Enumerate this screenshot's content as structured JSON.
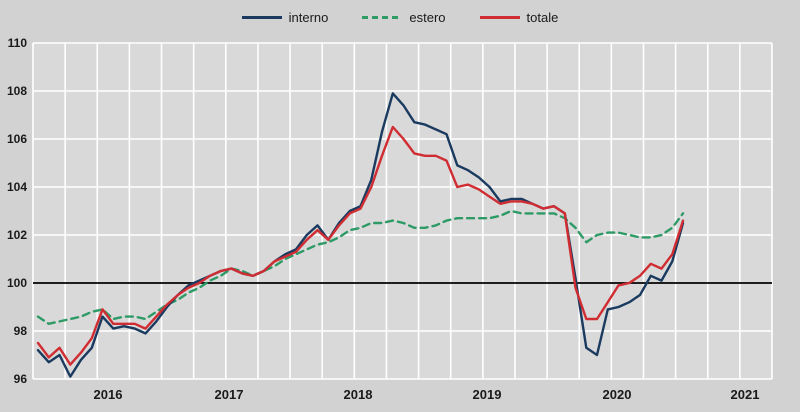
{
  "legend": {
    "items": [
      {
        "label": "interno",
        "color": "#1b3a5f",
        "style": "solid"
      },
      {
        "label": "estero",
        "color": "#2e9b67",
        "style": "dashed"
      },
      {
        "label": "totale",
        "color": "#d02d33",
        "style": "solid"
      }
    ]
  },
  "colors": {
    "background": "#d2d2d2",
    "plot_fill": "#d9d9d9",
    "gridline": "#ffffff",
    "baseline": "#000000",
    "interno": "#1b3a5f",
    "estero": "#2e9b67",
    "totale": "#d02d33"
  },
  "chart_data": {
    "type": "line",
    "title": "",
    "xlabel": "",
    "ylabel": "",
    "ylim": [
      96,
      110
    ],
    "yticks": [
      96,
      98,
      100,
      102,
      104,
      106,
      108,
      110
    ],
    "baseline_value": 100,
    "grid": "on",
    "legend_position": "top-center",
    "x_tick_labels": [
      "2016",
      "2017",
      "2018",
      "2019",
      "2020",
      "2021"
    ],
    "frequency": "monthly",
    "x": [
      "2016-01",
      "2016-02",
      "2016-03",
      "2016-04",
      "2016-05",
      "2016-06",
      "2016-07",
      "2016-08",
      "2016-09",
      "2016-10",
      "2016-11",
      "2016-12",
      "2017-01",
      "2017-02",
      "2017-03",
      "2017-04",
      "2017-05",
      "2017-06",
      "2017-07",
      "2017-08",
      "2017-09",
      "2017-10",
      "2017-11",
      "2017-12",
      "2018-01",
      "2018-02",
      "2018-03",
      "2018-04",
      "2018-05",
      "2018-06",
      "2018-07",
      "2018-08",
      "2018-09",
      "2018-10",
      "2018-11",
      "2018-12",
      "2019-01",
      "2019-02",
      "2019-03",
      "2019-04",
      "2019-05",
      "2019-06",
      "2019-07",
      "2019-08",
      "2019-09",
      "2019-10",
      "2019-11",
      "2019-12",
      "2020-01",
      "2020-02",
      "2020-03",
      "2020-04",
      "2020-05",
      "2020-06",
      "2020-07",
      "2020-08",
      "2020-09",
      "2020-10",
      "2020-11",
      "2020-12",
      "2021-01"
    ],
    "series": [
      {
        "name": "interno",
        "color": "#1b3a5f",
        "dash": null,
        "values": [
          97.2,
          96.7,
          97.0,
          96.1,
          96.8,
          97.3,
          98.6,
          98.1,
          98.2,
          98.1,
          97.9,
          98.4,
          99.0,
          99.5,
          99.9,
          100.1,
          100.3,
          100.5,
          100.6,
          100.4,
          100.3,
          100.5,
          100.9,
          101.2,
          101.4,
          102.0,
          102.4,
          101.8,
          102.5,
          103.0,
          103.2,
          104.3,
          106.3,
          107.9,
          107.4,
          106.7,
          106.6,
          106.4,
          106.2,
          104.9,
          104.7,
          104.4,
          104.0,
          103.4,
          103.5,
          103.5,
          103.3,
          103.1,
          103.2,
          102.9,
          100.2,
          97.3,
          97.0,
          98.9,
          99.0,
          99.2,
          99.5,
          100.3,
          100.1,
          100.9,
          102.5
        ]
      },
      {
        "name": "estero",
        "color": "#2e9b67",
        "dash": "7 5",
        "values": [
          98.6,
          98.3,
          98.4,
          98.5,
          98.6,
          98.8,
          98.9,
          98.5,
          98.6,
          98.6,
          98.5,
          98.8,
          99.1,
          99.3,
          99.6,
          99.8,
          100.1,
          100.3,
          100.6,
          100.5,
          100.3,
          100.5,
          100.7,
          101.0,
          101.2,
          101.4,
          101.6,
          101.7,
          101.9,
          102.2,
          102.3,
          102.5,
          102.5,
          102.6,
          102.5,
          102.3,
          102.3,
          102.4,
          102.6,
          102.7,
          102.7,
          102.7,
          102.7,
          102.8,
          103.0,
          102.9,
          102.9,
          102.9,
          102.9,
          102.7,
          102.3,
          101.7,
          102.0,
          102.1,
          102.1,
          102.0,
          101.9,
          101.9,
          102.0,
          102.3,
          102.9
        ]
      },
      {
        "name": "totale",
        "color": "#d02d33",
        "dash": null,
        "values": [
          97.5,
          96.9,
          97.3,
          96.6,
          97.1,
          97.7,
          98.9,
          98.3,
          98.3,
          98.3,
          98.1,
          98.6,
          99.1,
          99.5,
          99.8,
          100.0,
          100.3,
          100.5,
          100.6,
          100.4,
          100.3,
          100.5,
          100.9,
          101.1,
          101.3,
          101.8,
          102.2,
          101.8,
          102.4,
          102.9,
          103.1,
          104.0,
          105.3,
          106.5,
          106.0,
          105.4,
          105.3,
          105.3,
          105.1,
          104.0,
          104.1,
          103.9,
          103.6,
          103.3,
          103.4,
          103.4,
          103.3,
          103.1,
          103.2,
          102.9,
          99.8,
          98.5,
          98.5,
          99.2,
          99.9,
          100.0,
          100.3,
          100.8,
          100.6,
          101.2,
          102.6
        ]
      }
    ]
  }
}
